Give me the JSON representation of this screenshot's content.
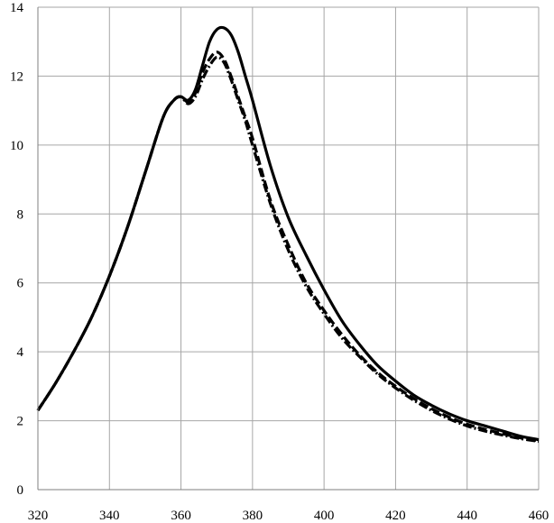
{
  "chart_data": {
    "type": "line",
    "title": "",
    "xlabel": "",
    "ylabel": "",
    "xlim": [
      320,
      460
    ],
    "ylim": [
      0,
      14
    ],
    "x_ticks": [
      320,
      340,
      360,
      380,
      400,
      420,
      440,
      460
    ],
    "y_ticks": [
      0,
      2,
      4,
      6,
      8,
      10,
      12,
      14
    ],
    "grid": true,
    "legend": "none",
    "series": [
      {
        "style": "solid",
        "color": "#000000",
        "x": [
          320,
          325,
          330,
          335,
          340,
          345,
          350,
          355,
          358,
          360,
          362,
          364,
          366,
          368,
          370,
          372,
          374,
          376,
          378,
          380,
          385,
          390,
          395,
          400,
          405,
          410,
          415,
          420,
          425,
          430,
          435,
          440,
          445,
          450,
          455,
          460
        ],
        "y": [
          2.3,
          3.1,
          4.0,
          5.0,
          6.2,
          7.6,
          9.2,
          10.8,
          11.3,
          11.4,
          11.3,
          11.6,
          12.3,
          13.0,
          13.35,
          13.4,
          13.2,
          12.7,
          12.0,
          11.3,
          9.4,
          7.9,
          6.8,
          5.8,
          4.9,
          4.2,
          3.6,
          3.15,
          2.75,
          2.45,
          2.2,
          2.0,
          1.85,
          1.7,
          1.55,
          1.45
        ]
      },
      {
        "style": "dashed",
        "color": "#000000",
        "x": [
          320,
          325,
          330,
          335,
          340,
          345,
          350,
          355,
          358,
          360,
          362,
          364,
          366,
          368,
          370,
          372,
          374,
          376,
          378,
          380,
          385,
          390,
          395,
          400,
          405,
          410,
          415,
          420,
          425,
          430,
          435,
          440,
          445,
          450,
          455,
          460
        ],
        "y": [
          2.3,
          3.1,
          4.0,
          5.0,
          6.2,
          7.6,
          9.2,
          10.8,
          11.3,
          11.4,
          11.25,
          11.5,
          12.1,
          12.5,
          12.7,
          12.5,
          12.0,
          11.4,
          10.8,
          10.2,
          8.4,
          7.1,
          6.0,
          5.2,
          4.5,
          3.9,
          3.4,
          3.0,
          2.65,
          2.35,
          2.1,
          1.9,
          1.75,
          1.62,
          1.5,
          1.42
        ]
      },
      {
        "style": "dash-dot",
        "color": "#000000",
        "x": [
          320,
          325,
          330,
          335,
          340,
          345,
          350,
          355,
          358,
          360,
          362,
          364,
          366,
          368,
          370,
          372,
          374,
          376,
          378,
          380,
          385,
          390,
          395,
          400,
          405,
          410,
          415,
          420,
          425,
          430,
          435,
          440,
          445,
          450,
          455,
          460
        ],
        "y": [
          2.3,
          3.1,
          4.0,
          5.0,
          6.2,
          7.6,
          9.2,
          10.8,
          11.3,
          11.4,
          11.2,
          11.4,
          11.9,
          12.3,
          12.55,
          12.4,
          11.9,
          11.3,
          10.7,
          10.0,
          8.3,
          6.95,
          5.9,
          5.1,
          4.4,
          3.85,
          3.35,
          2.95,
          2.6,
          2.3,
          2.05,
          1.85,
          1.7,
          1.58,
          1.48,
          1.4
        ]
      }
    ]
  }
}
